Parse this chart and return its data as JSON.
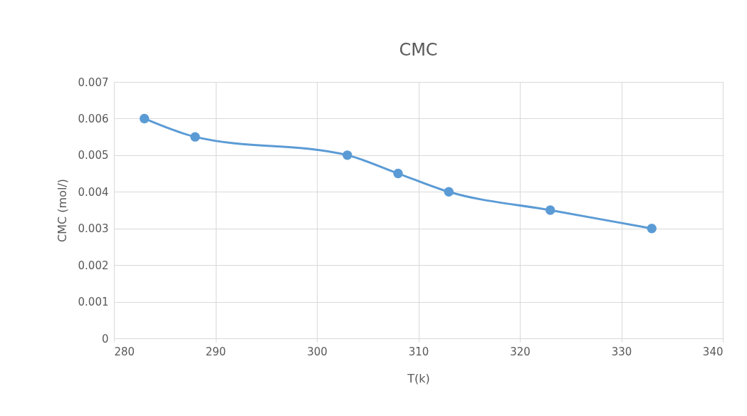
{
  "chart_data": {
    "type": "line",
    "title": "CMC",
    "xlabel": "T(k)",
    "ylabel": "CMC (mol/)",
    "x": [
      283,
      288,
      303,
      308,
      313,
      323,
      333
    ],
    "series": [
      {
        "color": "#5b9bd5",
        "values": [
          0.006,
          0.0055,
          0.005,
          0.0045,
          0.004,
          0.0035,
          0.003
        ]
      }
    ],
    "xlim": [
      280,
      340
    ],
    "xticks": [
      280,
      290,
      300,
      310,
      320,
      330,
      340
    ],
    "ylim": [
      0,
      0.007
    ],
    "yticks": [
      0,
      0.001,
      0.002,
      0.003,
      0.004,
      0.005,
      0.006,
      0.007
    ],
    "grid": true,
    "marker": "circle",
    "line_style": "solid"
  }
}
